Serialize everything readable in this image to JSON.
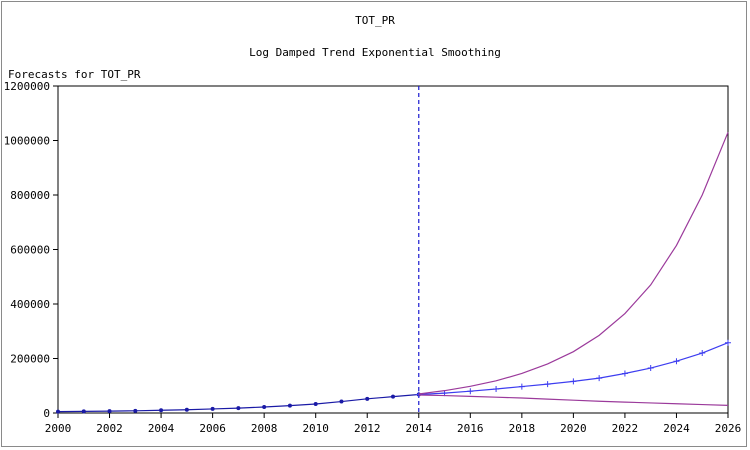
{
  "chart_data": {
    "type": "line",
    "title": "TOT_PR",
    "subtitle": "Log Damped Trend Exponential Smoothing",
    "ylabel": "Forecasts for TOT_PR",
    "xlim": [
      2000,
      2026
    ],
    "ylim": [
      0,
      1200000
    ],
    "x_ticks": [
      2000,
      2002,
      2004,
      2006,
      2008,
      2010,
      2012,
      2014,
      2016,
      2018,
      2020,
      2022,
      2024,
      2026
    ],
    "y_ticks": [
      0,
      200000,
      400000,
      600000,
      800000,
      1000000,
      1200000
    ],
    "forecast_start": 2014,
    "grid": false,
    "series": [
      {
        "role": "actual",
        "color": "#1a1aa6",
        "x": [
          2000,
          2001,
          2002,
          2003,
          2004,
          2005,
          2006,
          2007,
          2008,
          2009,
          2010,
          2011,
          2012,
          2013,
          2014
        ],
        "values": [
          5000,
          6000,
          7000,
          8000,
          10000,
          12000,
          15000,
          18000,
          22000,
          27000,
          33000,
          42000,
          52000,
          60000,
          68000
        ]
      },
      {
        "role": "forecast",
        "color": "#3d3df0",
        "x": [
          2014,
          2015,
          2016,
          2017,
          2018,
          2019,
          2020,
          2021,
          2022,
          2023,
          2024,
          2025,
          2026
        ],
        "values": [
          68000,
          73000,
          80000,
          88000,
          97000,
          106000,
          116000,
          128000,
          145000,
          165000,
          190000,
          220000,
          258000
        ]
      },
      {
        "role": "upper",
        "color": "#9b3a9b",
        "x": [
          2014,
          2015,
          2016,
          2017,
          2018,
          2019,
          2020,
          2021,
          2022,
          2023,
          2024,
          2025,
          2026
        ],
        "values": [
          70000,
          82000,
          98000,
          118000,
          145000,
          180000,
          225000,
          285000,
          365000,
          470000,
          615000,
          800000,
          1030000
        ]
      },
      {
        "role": "lower",
        "color": "#9b3a9b",
        "x": [
          2014,
          2015,
          2016,
          2017,
          2018,
          2019,
          2020,
          2021,
          2022,
          2023,
          2024,
          2025,
          2026
        ],
        "values": [
          66000,
          64000,
          61000,
          58000,
          55000,
          51000,
          47000,
          43000,
          40000,
          37000,
          34000,
          31000,
          28000
        ]
      }
    ]
  }
}
